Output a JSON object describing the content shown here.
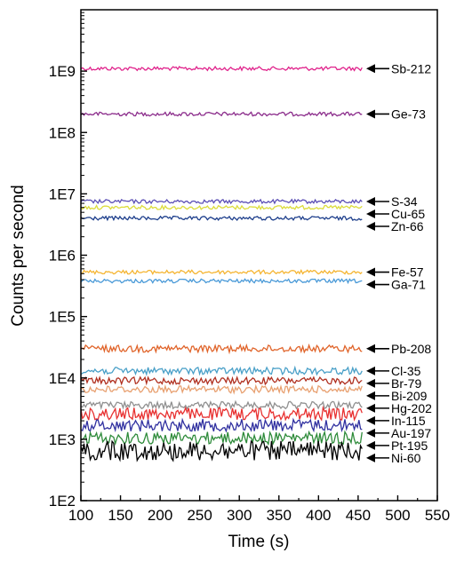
{
  "chart_data": {
    "type": "line",
    "title": "",
    "xlabel": "Time (s)",
    "ylabel": "Counts per second",
    "xlim": [
      100,
      550
    ],
    "ylim": [
      100,
      10000000000
    ],
    "yscale": "log",
    "x_ticks": [
      "100",
      "150",
      "200",
      "250",
      "300",
      "350",
      "400",
      "450",
      "500",
      "550"
    ],
    "y_ticks": [
      "1E2",
      "1E3",
      "1E4",
      "1E5",
      "1E6",
      "1E7",
      "1E8",
      "1E9"
    ],
    "x_range": [
      100,
      455
    ],
    "annotation_style": "arrow labels at right end of each series",
    "series": [
      {
        "name": "Sb-212",
        "value": 1100000000,
        "color": "#e0248c"
      },
      {
        "name": "Ge-73",
        "value": 200000000,
        "color": "#8b2c8b"
      },
      {
        "name": "S-34",
        "value": 7500000,
        "color": "#5b4fb5"
      },
      {
        "name": "Cu-65",
        "value": 6000000,
        "color": "#dcdc3c"
      },
      {
        "name": "Zn-66",
        "value": 4000000,
        "color": "#1e3f8c"
      },
      {
        "name": "Fe-57",
        "value": 530000,
        "color": "#f5b532"
      },
      {
        "name": "Ga-71",
        "value": 380000,
        "color": "#4a9ad8"
      },
      {
        "name": "Pb-208",
        "value": 30000,
        "color": "#e0642a"
      },
      {
        "name": "Cl-35",
        "value": 13000,
        "color": "#4aa0c8"
      },
      {
        "name": "Br-79",
        "value": 9000,
        "color": "#b03020"
      },
      {
        "name": "Bi-209",
        "value": 6500,
        "color": "#e8a070"
      },
      {
        "name": "Hg-202",
        "value": 3600,
        "color": "#909090"
      },
      {
        "name": "In-115",
        "value": 2600,
        "color": "#e83030"
      },
      {
        "name": "Au-197",
        "value": 1700,
        "color": "#3030a0"
      },
      {
        "name": "Pt-195",
        "value": 1050,
        "color": "#2e8b3a"
      },
      {
        "name": "Ni-60",
        "value": 650,
        "color": "#000000"
      }
    ]
  }
}
